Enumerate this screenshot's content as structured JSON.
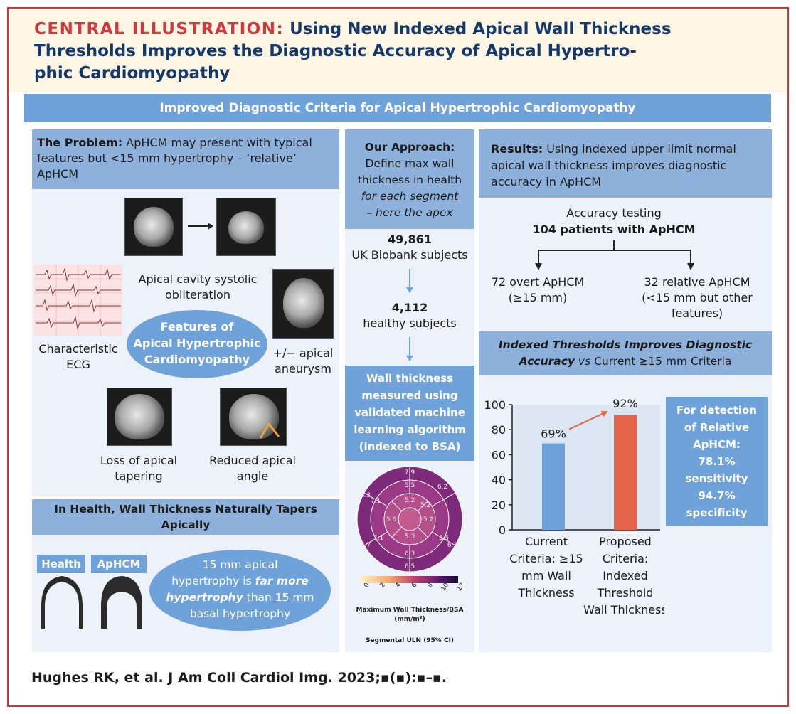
{
  "header": {
    "label": "CENTRAL ILLUSTRATION:",
    "title_line1": "Using New Indexed Apical Wall Thickness",
    "title_line2": "Thresholds Improves the Diagnostic Accuracy of Apical Hypertro-",
    "title_line3": "phic Cardiomyopathy"
  },
  "banner": "Improved Diagnostic Criteria for Apical Hypertrophic Cardiomyopathy",
  "problem": {
    "label": "The Problem:",
    "text1": " ApHCM may present with typical",
    "text2": "features but <15 mm hypertrophy – ‘relative’",
    "text3": "ApHCM",
    "apical_cavity_1": "Apical cavity systolic",
    "apical_cavity_2": "obliteration",
    "ecg_1": "Characteristic",
    "ecg_2": "ECG",
    "features_1": "Features of",
    "features_2": "Apical Hypertrophic",
    "features_3": "Cardiomyopathy",
    "aneurysm_1": "+/− apical",
    "aneurysm_2": "aneurysm",
    "tapering_1": "Loss of apical",
    "tapering_2": "tapering",
    "angle_1": "Reduced apical",
    "angle_2": "angle"
  },
  "health": {
    "title1": "In Health, Wall Thickness Naturally Tapers",
    "title2": "Apically",
    "health_tag": "Health",
    "aphcm_tag": "ApHCM",
    "note1": "15 mm apical",
    "note2a": "hypertrophy is ",
    "note2b": "far more",
    "note3a": "hypertrophy",
    "note3b": " than 15 mm",
    "note4": "basal hypertrophy"
  },
  "approach": {
    "title": "Our Approach:",
    "line1": "Define max wall",
    "line2": "thickness in health",
    "line3": "for each segment",
    "line4": "– here the apex",
    "count1": "49,861",
    "count1_label": "UK Biobank subjects",
    "count2": "4,112",
    "count2_label": "healthy subjects",
    "wall1": "Wall thickness",
    "wall2": "measured using",
    "wall3": "validated machine",
    "wall4": "learning algorithm",
    "wall5": "(indexed to BSA)",
    "bullseye_values": [
      "7.9",
      "5.5",
      "6.2",
      "5.2",
      "5.2",
      "8.3",
      "7.1",
      "5.6",
      "5.2",
      "5.5",
      "7.1",
      "5.3",
      "6.3",
      "7.7",
      "6.3",
      "6.5"
    ],
    "scale_ticks": [
      "0",
      "2",
      "4",
      "6",
      "8",
      "10",
      "12"
    ],
    "scale_label1": "Maximum Wall Thickness/BSA",
    "scale_label2": "(mm/m²)",
    "scale_label3": "Segmental ULN (95% CI)"
  },
  "results": {
    "label": "Results:",
    "text1": " Using indexed upper limit normal",
    "text2": "apical wall thickness improves diagnostic",
    "text3": "accuracy in ApHCM",
    "testing1": "Accuracy testing",
    "testing2": "104 patients with ApHCM",
    "overt1": "72 overt ApHCM",
    "overt2": "(≥15 mm)",
    "relative1": "32 relative ApHCM",
    "relative2": "(<15 mm but other",
    "relative3": "features)",
    "indexed1": "Indexed Thresholds Improves Diagnostic",
    "indexed2a": "Accuracy",
    "indexed2b": " vs",
    "indexed2c": " Current ≥15 mm Criteria",
    "detect1": "For detection",
    "detect2": "of Relative",
    "detect3": "ApHCM:",
    "detect4": "78.1%",
    "detect5": "sensitivity",
    "detect6": "94.7%",
    "detect7": "specificity"
  },
  "chart_data": {
    "type": "bar",
    "categories": [
      "Current Criteria: ≥15 mm Wall Thickness",
      "Proposed Criteria: Indexed Threshold Wall Thickness"
    ],
    "values": [
      69,
      92
    ],
    "value_labels": [
      "69%",
      "92%"
    ],
    "yticks": [
      0,
      20,
      40,
      60,
      80,
      100
    ],
    "ylim": [
      0,
      100
    ],
    "colors": [
      "#6ea2d8",
      "#e4644a"
    ],
    "cat1_lines": [
      "Current",
      "Criteria: ≥15",
      "mm Wall",
      "Thickness"
    ],
    "cat2_lines": [
      "Proposed",
      "Criteria:",
      "Indexed",
      "Threshold",
      "Wall Thickness"
    ]
  },
  "citation": "Hughes RK, et al. J Am Coll Cardiol Img. 2023;▪(▪):▪–▪."
}
